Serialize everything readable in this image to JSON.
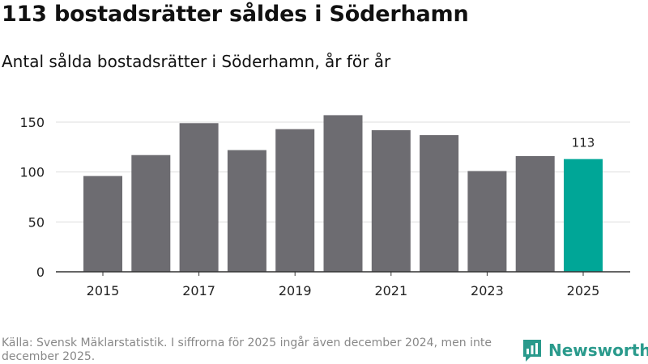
{
  "header": {
    "title": "113 bostadsrätter såldes i Söderhamn",
    "subtitle": "Antal sålda bostadsrätter i Söderhamn, år för år"
  },
  "chart_data": {
    "type": "bar",
    "categories": [
      "2015",
      "2016",
      "2017",
      "2018",
      "2019",
      "2020",
      "2021",
      "2022",
      "2023",
      "2024",
      "2025"
    ],
    "values": [
      96,
      117,
      149,
      122,
      143,
      157,
      142,
      137,
      101,
      116,
      113
    ],
    "x_tick_labels": [
      "2015",
      "2017",
      "2019",
      "2021",
      "2023",
      "2025"
    ],
    "y_ticks": [
      0,
      50,
      100,
      150
    ],
    "ylim": [
      0,
      163
    ],
    "grid": true,
    "highlight_category": "2025",
    "data_labels": [
      {
        "category": "2025",
        "text": "113"
      }
    ],
    "colors": {
      "bar": "#6d6c71",
      "highlight": "#00a697",
      "grid": "#dddddd",
      "axis": "#333333"
    },
    "title": "Antal sålda bostadsrätter i Söderhamn, år för år",
    "xlabel": "",
    "ylabel": ""
  },
  "footer": {
    "source": "Källa: Svensk Mäklarstatistik. I siffrorna för 2025 ingår även december 2024, men inte december 2025.",
    "brand": "Newsworthy",
    "brand_color": "#2a9a8c",
    "brand_icon": "bar-chart-speech-bubble-icon"
  }
}
